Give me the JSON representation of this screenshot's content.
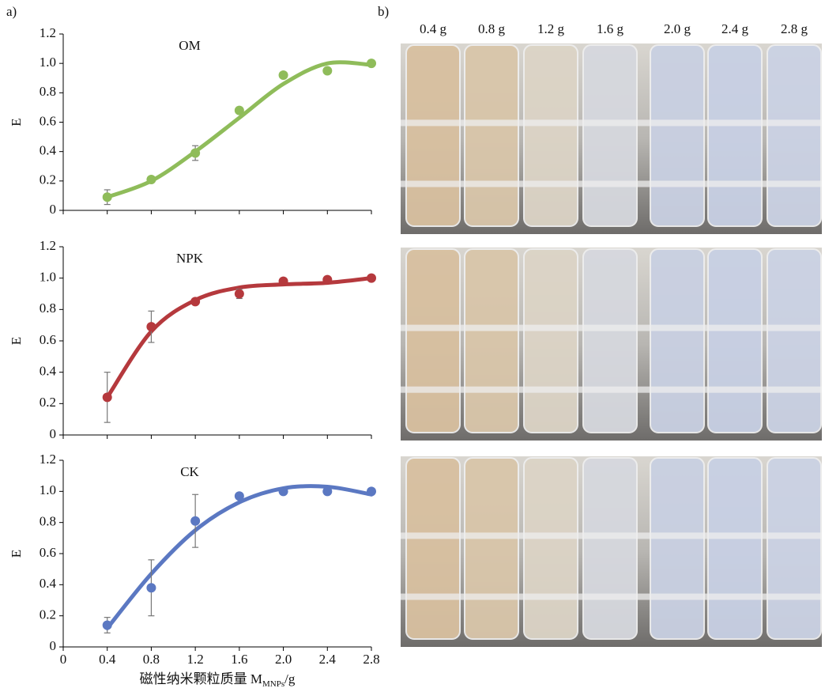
{
  "panel_labels": [
    "a)",
    "b)"
  ],
  "chart_data": [
    {
      "type": "line",
      "title": "OM",
      "ylabel": "E",
      "color": "#8fbc5a",
      "x": [
        0.4,
        0.8,
        1.2,
        1.6,
        2.0,
        2.4,
        2.8
      ],
      "xlim": [
        0,
        2.8
      ],
      "xticks": [
        0,
        0.4,
        0.8,
        1.2,
        1.6,
        {
          "value": 2,
          "label": "2.0"
        },
        2.4,
        2.8
      ],
      "show_xtick_labels": false,
      "ylim": [
        0,
        1.2
      ],
      "yticks": [
        0,
        0.2,
        0.4,
        0.6,
        0.8,
        {
          "value": 1,
          "label": "1.0"
        },
        1.2
      ],
      "values": [
        0.09,
        0.21,
        0.39,
        0.68,
        0.92,
        0.95,
        1.0
      ],
      "errors": [
        0.05,
        null,
        0.05,
        null,
        null,
        null,
        null
      ],
      "curve": [
        0.09,
        0.2,
        0.4,
        0.63,
        0.86,
        1.0,
        0.99
      ]
    },
    {
      "type": "line",
      "title": "NPK",
      "ylabel": "E",
      "color": "#b5393d",
      "x": [
        0.4,
        0.8,
        1.2,
        1.6,
        2.0,
        2.4,
        2.8
      ],
      "xlim": [
        0,
        2.8
      ],
      "xticks": [
        0,
        0.4,
        0.8,
        1.2,
        1.6,
        {
          "value": 2,
          "label": "2.0"
        },
        2.4,
        2.8
      ],
      "show_xtick_labels": false,
      "ylim": [
        0,
        1.2
      ],
      "yticks": [
        0,
        0.2,
        0.4,
        0.6,
        0.8,
        {
          "value": 1,
          "label": "1.0"
        },
        1.2
      ],
      "values": [
        0.24,
        0.69,
        0.85,
        0.9,
        0.98,
        0.99,
        1.0
      ],
      "errors": [
        0.16,
        0.1,
        null,
        0.03,
        null,
        null,
        null
      ],
      "curve": [
        0.24,
        0.66,
        0.86,
        0.94,
        0.96,
        0.97,
        1.0
      ]
    },
    {
      "type": "line",
      "title": "CK",
      "ylabel": "E",
      "color": "#5b78c2",
      "x": [
        0.4,
        0.8,
        1.2,
        1.6,
        2.0,
        2.4,
        2.8
      ],
      "xlim": [
        0,
        2.8
      ],
      "xticks": [
        0,
        0.4,
        0.8,
        1.2,
        1.6,
        {
          "value": 2,
          "label": "2.0"
        },
        2.4,
        2.8
      ],
      "show_xtick_labels": true,
      "ylim": [
        0,
        1.2
      ],
      "yticks": [
        0,
        0.2,
        0.4,
        0.6,
        0.8,
        {
          "value": 1,
          "label": "1.0"
        },
        1.2
      ],
      "values": [
        0.14,
        0.38,
        0.81,
        0.97,
        1.0,
        1.0,
        1.0
      ],
      "errors": [
        0.05,
        0.18,
        0.17,
        null,
        null,
        null,
        null
      ],
      "curve": [
        0.12,
        0.47,
        0.75,
        0.93,
        1.02,
        1.03,
        0.98
      ],
      "xlabel": {
        "main": "磁性纳米颗粒质量 M",
        "sub": "MNPs",
        "unit": "/g"
      }
    }
  ],
  "photo_labels": [
    "0.4 g",
    "0.8 g",
    "1.2 g",
    "1.6 g",
    "2.0 g",
    "2.4 g",
    "2.8 g"
  ]
}
